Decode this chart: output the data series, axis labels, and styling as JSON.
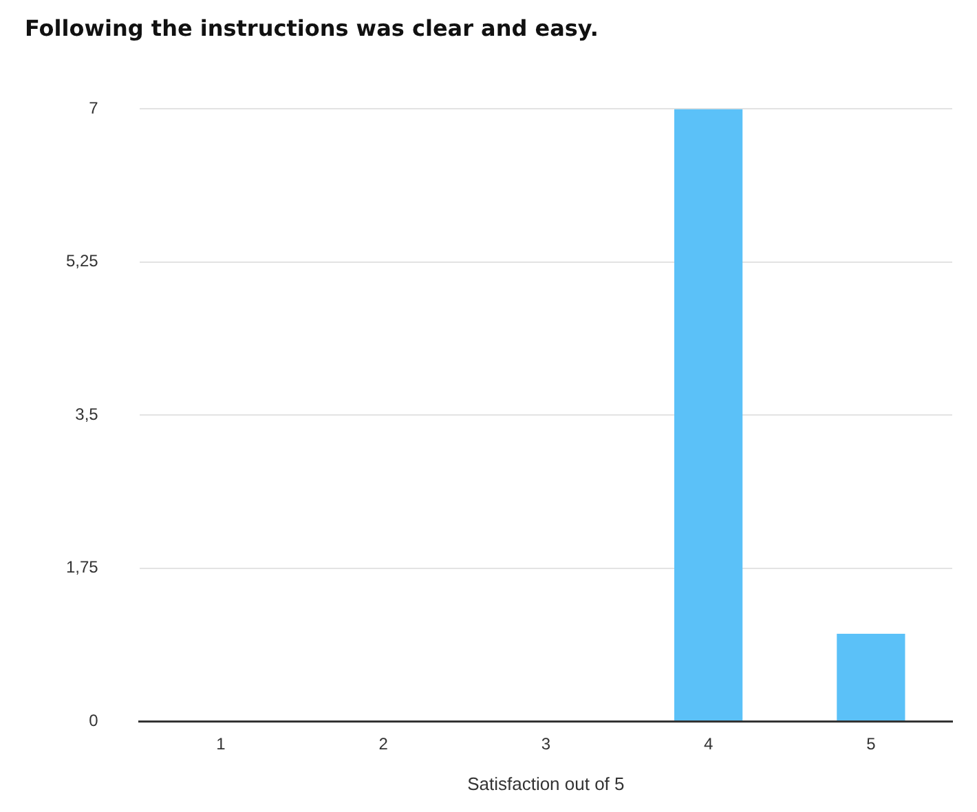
{
  "chart_data": {
    "type": "bar",
    "title": "Following the instructions was clear and easy.",
    "xlabel": "Satisfaction out of 5",
    "categories": [
      "1",
      "2",
      "3",
      "4",
      "5"
    ],
    "values": [
      0,
      0,
      0,
      7,
      1
    ],
    "color": "#5bc1f8",
    "ylim": [
      0,
      7
    ],
    "yticks": [
      0,
      {
        "value": 1.75,
        "label": "1,75"
      },
      {
        "value": 3.5,
        "label": "3,5"
      },
      {
        "value": 5.25,
        "label": "5,25"
      },
      7
    ],
    "grid": "y",
    "legend": false
  }
}
